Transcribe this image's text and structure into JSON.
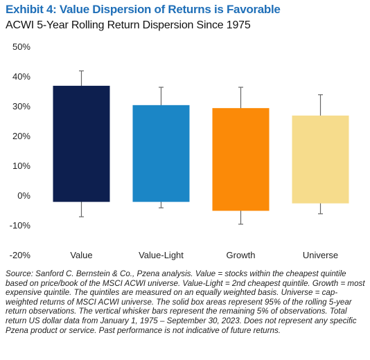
{
  "chart_data": {
    "type": "box",
    "title": "Exhibit 4: Value Dispersion of Returns is Favorable",
    "subtitle": "ACWI 5-Year Rolling Return Dispersion Since 1975",
    "ylim": [
      -20,
      50
    ],
    "yticks": [
      50,
      40,
      30,
      20,
      10,
      0,
      -10,
      -20
    ],
    "ytick_labels": [
      "50%",
      "40%",
      "30%",
      "20%",
      "10%",
      "0%",
      "-10%",
      "-20%"
    ],
    "grid": false,
    "categories": [
      "Value",
      "Value-Light",
      "Growth",
      "Universe"
    ],
    "series": [
      {
        "box_top": 37,
        "box_bottom": -2,
        "whisker_top": 42,
        "whisker_bottom": -7,
        "color": "#0d1f4f"
      },
      {
        "box_top": 30.5,
        "box_bottom": -2,
        "whisker_top": 36.5,
        "whisker_bottom": -4,
        "color": "#1b86c6"
      },
      {
        "box_top": 29.5,
        "box_bottom": -5,
        "whisker_top": 36.5,
        "whisker_bottom": -9.5,
        "color": "#fb8a08"
      },
      {
        "box_top": 27,
        "box_bottom": -2.5,
        "whisker_top": 34,
        "whisker_bottom": -6,
        "color": "#f6dc8c"
      }
    ],
    "whisker_color": "#666666"
  },
  "source_note": "Source: Sanford C. Bernstein & Co., Pzena analysis. Value = stocks within the cheapest quintile based on price/book of the MSCI ACWI universe. Value-Light = 2nd cheapest quintile. Growth = most expensive quintile. The quintiles are measured on an equally weighted basis. Universe = cap-weighted returns of MSCI ACWI universe. The solid box areas represent 95% of the rolling 5-year return observations. The vertical whisker bars represent the remaining 5% of observations. Total return US dollar data from January 1, 1975 – September 30, 2023. Does not represent any specific Pzena product or service. Past performance is not indicative of future returns."
}
